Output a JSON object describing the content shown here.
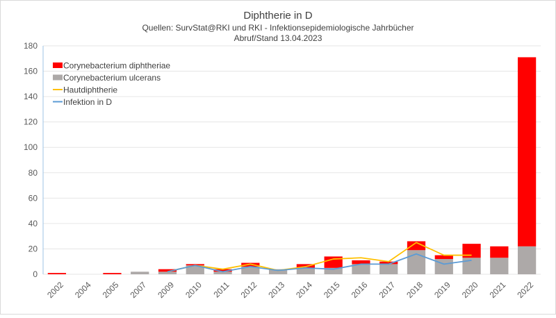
{
  "chart_data": {
    "type": "bar",
    "title": "Diphtherie in D",
    "subtitle": "Quellen: SurvStat@RKI und RKI - Infektionsepidemiologische Jahrbücher",
    "subtitle2": "Abruf/Stand 13.04.2023",
    "xlabel": "",
    "ylabel": "",
    "ylim": [
      0,
      180
    ],
    "yticks": [
      0,
      20,
      40,
      60,
      80,
      100,
      120,
      140,
      160,
      180
    ],
    "grid": true,
    "legend_placement": "top-left",
    "categories": [
      "2002",
      "2004",
      "2005",
      "2007",
      "2009",
      "2010",
      "2011",
      "2012",
      "2013",
      "2014",
      "2015",
      "2016",
      "2017",
      "2018",
      "2019",
      "2020",
      "2021",
      "2022"
    ],
    "series": [
      {
        "name": "Corynebacterium ulcerans",
        "kind": "stacked-bar",
        "color": "#ADA9A8",
        "values": [
          0,
          0,
          0,
          2,
          2,
          7,
          2,
          6,
          4,
          5,
          5,
          8,
          8,
          19,
          12,
          13,
          13,
          22
        ]
      },
      {
        "name": "Corynebacterium diphtheriae",
        "kind": "stacked-bar",
        "color": "#FF0000",
        "values": [
          1,
          0,
          1,
          0,
          2,
          1,
          2,
          3,
          0,
          3,
          9,
          3,
          2,
          7,
          3,
          11,
          9,
          149
        ]
      },
      {
        "name": "Hautdiphtherie",
        "kind": "line",
        "color": "#FFC000",
        "values": [
          null,
          null,
          null,
          null,
          2,
          7,
          4,
          8,
          3,
          6,
          12,
          13,
          10,
          25,
          15,
          15,
          null,
          null
        ]
      },
      {
        "name": "Infektion in D",
        "kind": "line",
        "color": "#5B9BD5",
        "values": [
          null,
          null,
          null,
          null,
          2,
          7,
          2,
          6,
          3,
          5,
          4,
          8,
          8,
          16,
          8,
          11,
          null,
          null
        ]
      }
    ],
    "legend": [
      "Corynebacterium diphtheriae",
      "Corynebacterium ulcerans",
      "Hautdiphtherie",
      "Infektion in D"
    ]
  }
}
